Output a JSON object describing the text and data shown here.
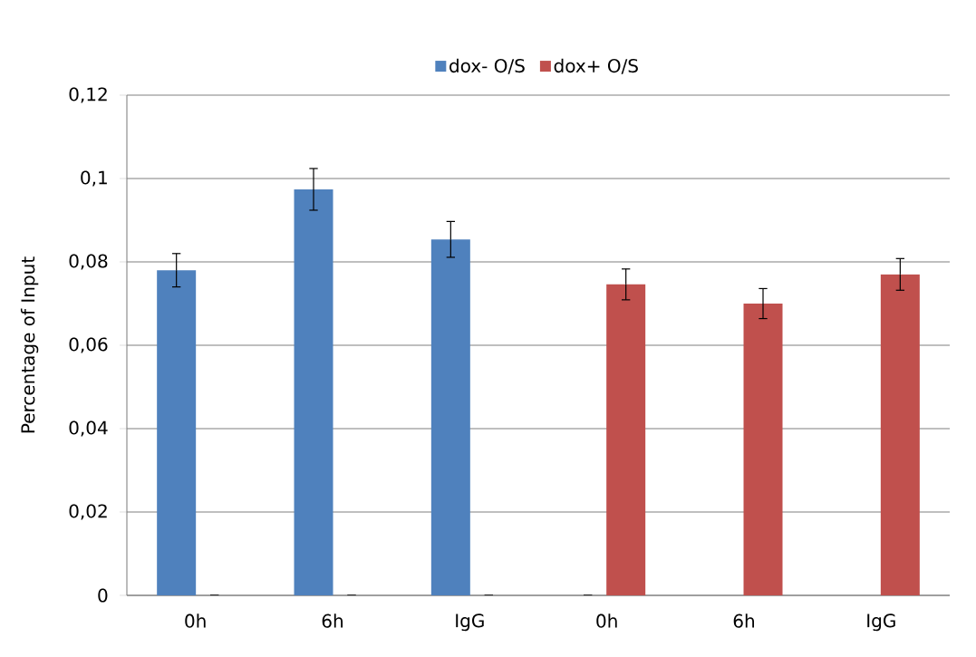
{
  "chart_data": {
    "type": "bar",
    "ylabel": "Percentage of Input",
    "categories": [
      "0h",
      "6h",
      "IgG",
      "0h",
      "6h",
      "IgG"
    ],
    "series": [
      {
        "name": "dox- O/S",
        "color": "#4f81bd",
        "values": [
          0.078,
          0.0974,
          0.0854,
          0,
          null,
          null
        ],
        "errors": [
          0.004,
          0.005,
          0.0043,
          null,
          null,
          null
        ]
      },
      {
        "name": "dox+ O/S",
        "color": "#c0504d",
        "values": [
          0,
          0,
          0,
          0.0746,
          0.07,
          0.077
        ],
        "errors": [
          null,
          null,
          null,
          0.0037,
          0.0036,
          0.0038
        ]
      }
    ],
    "ylim": [
      0,
      0.12
    ],
    "yticks": [
      {
        "value": 0,
        "label": "0"
      },
      {
        "value": 0.02,
        "label": "0,02"
      },
      {
        "value": 0.04,
        "label": "0,04"
      },
      {
        "value": 0.06,
        "label": "0,06"
      },
      {
        "value": 0.08,
        "label": "0,08"
      },
      {
        "value": 0.1,
        "label": "0,1"
      },
      {
        "value": 0.12,
        "label": "0,12"
      }
    ],
    "grid": "y",
    "legend": "top"
  }
}
